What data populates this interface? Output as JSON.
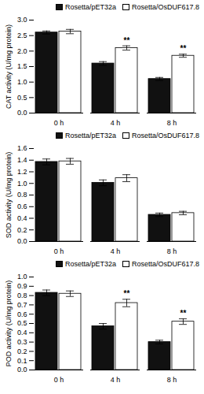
{
  "chart_data": [
    {
      "type": "bar",
      "ylabel": "CAT activity (U/mg protein)",
      "categories": [
        "0 h",
        "4 h",
        "8 h"
      ],
      "series": [
        {
          "name": "Rosetta/pET32a",
          "color": "#111111",
          "values": [
            2.6,
            1.6,
            1.1
          ],
          "errors": [
            0.05,
            0.06,
            0.05
          ]
        },
        {
          "name": "Rosetta/OsDUF617.8",
          "color": "#ffffff",
          "values": [
            2.63,
            2.1,
            1.85
          ],
          "errors": [
            0.07,
            0.07,
            0.05
          ]
        }
      ],
      "ylim": [
        0,
        3.0
      ],
      "yticks": [
        {
          "value": 0,
          "label": "0.0"
        },
        0.5,
        {
          "value": 1.0,
          "label": "1.0"
        },
        1.5,
        {
          "value": 2.0,
          "label": "2.0"
        },
        2.5,
        {
          "value": 3.0,
          "label": "3.0"
        }
      ],
      "annotations": [
        {
          "text": "**",
          "category": "4 h",
          "series": "Rosetta/OsDUF617.8"
        },
        {
          "text": "**",
          "category": "8 h",
          "series": "Rosetta/OsDUF617.8"
        }
      ],
      "legend": "upper right"
    },
    {
      "type": "bar",
      "ylabel": "SOD activity (U/mg protein)",
      "categories": [
        "0 h",
        "4 h",
        "8 h"
      ],
      "series": [
        {
          "name": "Rosetta/pET32a",
          "color": "#111111",
          "values": [
            1.37,
            1.01,
            0.46
          ],
          "errors": [
            0.05,
            0.05,
            0.03
          ]
        },
        {
          "name": "Rosetta/OsDUF617.8",
          "color": "#ffffff",
          "values": [
            1.38,
            1.09,
            0.49
          ],
          "errors": [
            0.05,
            0.06,
            0.03
          ]
        }
      ],
      "ylim": [
        0,
        1.6
      ],
      "yticks": [
        {
          "value": 0,
          "label": "0.0"
        },
        0.2,
        0.4,
        0.6,
        0.8,
        {
          "value": 1.0,
          "label": "1.0"
        },
        1.2,
        1.4,
        1.6
      ],
      "legend": "upper right"
    },
    {
      "type": "bar",
      "ylabel": "POD activity (U/mg protein)",
      "categories": [
        "0 h",
        "4 h",
        "8 h"
      ],
      "series": [
        {
          "name": "Rosetta/pET32a",
          "color": "#111111",
          "values": [
            0.83,
            0.47,
            0.3
          ],
          "errors": [
            0.03,
            0.03,
            0.02
          ]
        },
        {
          "name": "Rosetta/OsDUF617.8",
          "color": "#ffffff",
          "values": [
            0.82,
            0.72,
            0.52
          ],
          "errors": [
            0.03,
            0.04,
            0.03
          ]
        }
      ],
      "ylim": [
        0,
        1.0
      ],
      "yticks": [
        {
          "value": 0,
          "label": "0.0"
        },
        0.1,
        0.2,
        0.3,
        0.4,
        0.5,
        0.6,
        0.7,
        0.8,
        0.9,
        {
          "value": 1.0,
          "label": "1.0"
        }
      ],
      "annotations": [
        {
          "text": "**",
          "category": "4 h",
          "series": "Rosetta/OsDUF617.8"
        },
        {
          "text": "**",
          "category": "8 h",
          "series": "Rosetta/OsDUF617.8"
        }
      ],
      "legend": "upper right"
    }
  ]
}
